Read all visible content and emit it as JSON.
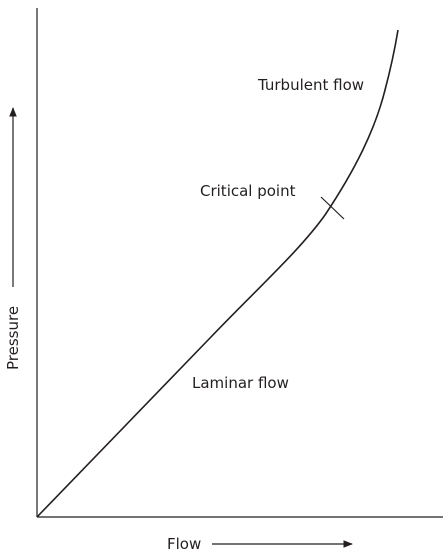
{
  "axes": {
    "y_label": "Pressure",
    "x_label": "Flow"
  },
  "annotations": {
    "turbulent": "Turbulent flow",
    "critical": "Critical point",
    "laminar": "Laminar flow"
  }
}
